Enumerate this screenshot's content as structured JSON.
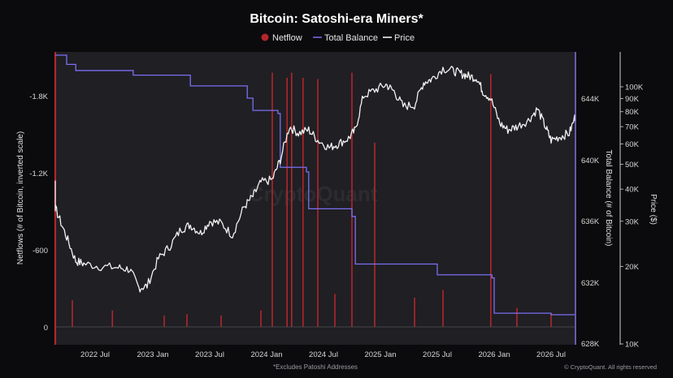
{
  "chart_data": {
    "type": "line",
    "title": "Bitcoin: Satoshi-era Miners*",
    "legend": {
      "placement": "top-center",
      "items": [
        {
          "label": "Netflow",
          "marker": "dot",
          "color": "#b3262b"
        },
        {
          "label": "Total Balance",
          "marker": "line",
          "color": "#7b6ff0"
        },
        {
          "label": "Price",
          "marker": "line",
          "color": "#ffffff"
        }
      ]
    },
    "x_axis": {
      "ticks": [
        "2022 Jul",
        "2023 Jan",
        "2023 Jul",
        "2024 Jan",
        "2024 Jul",
        "2025 Jan",
        "2025 Jul",
        "2026 Jan",
        "2026 Jul"
      ]
    },
    "left_axis": {
      "label": "Netflows (# of Bitcoin, inverted scale)",
      "ticks": [
        "-1.8K",
        "-1.2K",
        "-600",
        "0"
      ],
      "range": [
        -2100,
        0
      ],
      "inverted": true
    },
    "mid_axis": {
      "label": "Total Balance (# of Bitcoin)",
      "ticks": [
        "644K",
        "640K",
        "636K",
        "632K",
        "628K"
      ],
      "range": [
        628000,
        645500
      ]
    },
    "right_axis": {
      "label": "Price ($)",
      "scale": "log",
      "ticks": [
        "100K",
        "90K",
        "80K",
        "70K",
        "60K",
        "50K",
        "40K",
        "30K",
        "20K",
        "10K"
      ],
      "range": [
        10000,
        125000
      ]
    },
    "series": [
      {
        "name": "Total Balance",
        "points": [
          [
            2022.0,
            646800
          ],
          [
            2022.25,
            646200
          ],
          [
            2022.33,
            645800
          ],
          [
            2022.83,
            645500
          ],
          [
            2023.33,
            644800
          ],
          [
            2023.83,
            644000
          ],
          [
            2023.88,
            643200
          ],
          [
            2024.1,
            643000
          ],
          [
            2024.12,
            639500
          ],
          [
            2024.35,
            639200
          ],
          [
            2024.37,
            636800
          ],
          [
            2024.75,
            636300
          ],
          [
            2024.78,
            633200
          ],
          [
            2025.5,
            632500
          ],
          [
            2025.98,
            632300
          ],
          [
            2026.0,
            630000
          ],
          [
            2026.5,
            629900
          ]
        ]
      },
      {
        "name": "Price",
        "points": [
          [
            2022.0,
            40000
          ],
          [
            2022.05,
            42000
          ],
          [
            2022.1,
            38000
          ],
          [
            2022.17,
            32000
          ],
          [
            2022.25,
            26000
          ],
          [
            2022.33,
            21000
          ],
          [
            2022.4,
            20500
          ],
          [
            2022.55,
            20000
          ],
          [
            2022.7,
            19800
          ],
          [
            2022.8,
            19500
          ],
          [
            2022.88,
            16500
          ],
          [
            2022.95,
            16800
          ],
          [
            2023.05,
            21500
          ],
          [
            2023.15,
            24000
          ],
          [
            2023.25,
            28000
          ],
          [
            2023.33,
            29000
          ],
          [
            2023.42,
            27000
          ],
          [
            2023.5,
            30000
          ],
          [
            2023.6,
            29500
          ],
          [
            2023.7,
            26500
          ],
          [
            2023.8,
            34000
          ],
          [
            2023.88,
            37500
          ],
          [
            2023.95,
            42500
          ],
          [
            2024.05,
            43500
          ],
          [
            2024.12,
            52000
          ],
          [
            2024.2,
            70000
          ],
          [
            2024.28,
            66000
          ],
          [
            2024.37,
            68000
          ],
          [
            2024.45,
            62000
          ],
          [
            2024.55,
            58000
          ],
          [
            2024.63,
            60000
          ],
          [
            2024.72,
            63000
          ],
          [
            2024.78,
            68000
          ],
          [
            2024.85,
            92000
          ],
          [
            2024.95,
            97000
          ],
          [
            2025.05,
            102000
          ],
          [
            2025.12,
            96000
          ],
          [
            2025.2,
            84000
          ],
          [
            2025.3,
            85000
          ],
          [
            2025.38,
            104000
          ],
          [
            2025.45,
            107000
          ],
          [
            2025.55,
            118000
          ],
          [
            2025.65,
            115000
          ],
          [
            2025.72,
            112000
          ],
          [
            2025.78,
            110000
          ],
          [
            2025.85,
            108000
          ],
          [
            2025.9,
            96000
          ],
          [
            2025.97,
            90000
          ],
          [
            2026.05,
            72000
          ],
          [
            2026.12,
            68000
          ],
          [
            2026.2,
            70000
          ],
          [
            2026.3,
            74000
          ],
          [
            2026.38,
            82000
          ],
          [
            2026.45,
            70000
          ],
          [
            2026.5,
            62000
          ],
          [
            2026.58,
            64000
          ],
          [
            2026.66,
            66000
          ],
          [
            2026.72,
            78000
          ]
        ]
      },
      {
        "name": "Netflow",
        "spikes": [
          [
            2022.05,
            -180
          ],
          [
            2022.3,
            -210
          ],
          [
            2022.65,
            -130
          ],
          [
            2023.1,
            -90
          ],
          [
            2023.3,
            -100
          ],
          [
            2023.6,
            -90
          ],
          [
            2023.95,
            -130
          ],
          [
            2024.05,
            -2000
          ],
          [
            2024.18,
            -1960
          ],
          [
            2024.22,
            -2000
          ],
          [
            2024.32,
            -1960
          ],
          [
            2024.45,
            -1950
          ],
          [
            2024.6,
            -260
          ],
          [
            2024.75,
            -2000
          ],
          [
            2024.95,
            -1450
          ],
          [
            2025.3,
            -230
          ],
          [
            2025.55,
            -290
          ],
          [
            2025.97,
            -1990
          ],
          [
            2026.2,
            -150
          ],
          [
            2026.5,
            -110
          ]
        ]
      }
    ],
    "footnote": "*Excludes Patoshi Addresses",
    "credit": "© CryptoQuant. All rights reserved",
    "watermark": "CryptoQuant",
    "grid": false
  }
}
